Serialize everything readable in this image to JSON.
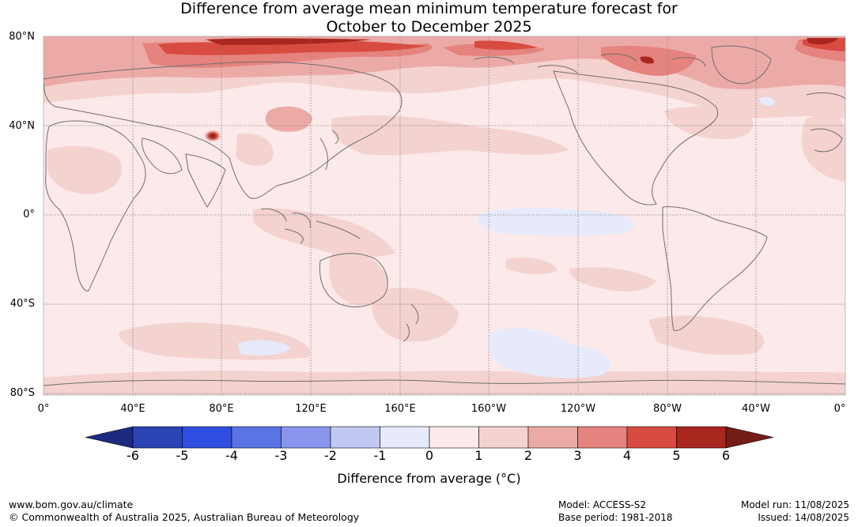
{
  "title_line1": "Difference from average mean minimum temperature forecast for",
  "title_line2": "October to December 2025",
  "map": {
    "lat_labels": [
      "80°N",
      "40°N",
      "0°",
      "40°S",
      "80°S"
    ],
    "lon_labels": [
      "0°",
      "40°E",
      "80°E",
      "120°E",
      "160°E",
      "160°W",
      "120°W",
      "80°W",
      "40°W",
      "0°"
    ],
    "graticule": "dotted",
    "coastline_color": "#6e6e6e"
  },
  "colorbar": {
    "ticks": [
      "-6",
      "-5",
      "-4",
      "-3",
      "-2",
      "-1",
      "0",
      "1",
      "2",
      "3",
      "4",
      "5",
      "6"
    ],
    "colors": [
      "#1b2a80",
      "#2a43b5",
      "#2f4de0",
      "#5a74e6",
      "#8796ec",
      "#c1c8f3",
      "#e6eafb",
      "#fbeae9",
      "#f4d2d0",
      "#ecaaa6",
      "#e5837e",
      "#d84b40",
      "#a9261f",
      "#741c16"
    ],
    "label": "Difference from average (°C)"
  },
  "footer": {
    "website": "www.bom.gov.au/climate",
    "copyright": "© Commonwealth of Australia 2025, Australian Bureau of Meteorology",
    "model": "Model: ACCESS-S2",
    "base_period": "Base period: 1981-2018",
    "model_run": "Model run: 11/08/2025",
    "issued": "Issued: 14/08/2025"
  }
}
